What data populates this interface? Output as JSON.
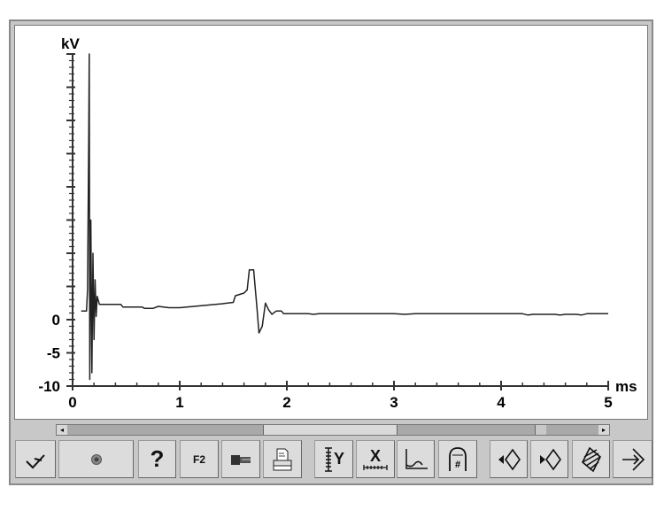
{
  "chart_data": {
    "type": "line",
    "title": "",
    "xlabel": "ms",
    "ylabel": "kV",
    "xlim": [
      0,
      5
    ],
    "ylim": [
      -10,
      40
    ],
    "x_ticks": [
      "0",
      "1",
      "2",
      "3",
      "4",
      "5"
    ],
    "y_ticks": [
      "0",
      "-5",
      "-10"
    ],
    "grid": false,
    "series": [
      {
        "color": "#222222",
        "points": [
          [
            0.08,
            1.3
          ],
          [
            0.13,
            1.3
          ],
          [
            0.14,
            4.5
          ],
          [
            0.15,
            27
          ],
          [
            0.155,
            40
          ],
          [
            0.16,
            -9
          ],
          [
            0.17,
            15
          ],
          [
            0.18,
            -8
          ],
          [
            0.19,
            10
          ],
          [
            0.2,
            -3
          ],
          [
            0.21,
            6
          ],
          [
            0.22,
            0.5
          ],
          [
            0.23,
            3.5
          ],
          [
            0.25,
            2.3
          ],
          [
            0.45,
            2.3
          ],
          [
            0.47,
            1.9
          ],
          [
            0.65,
            1.9
          ],
          [
            0.67,
            1.7
          ],
          [
            0.75,
            1.7
          ],
          [
            0.8,
            2.0
          ],
          [
            0.9,
            1.8
          ],
          [
            1.0,
            1.8
          ],
          [
            1.2,
            2.1
          ],
          [
            1.4,
            2.4
          ],
          [
            1.5,
            2.6
          ],
          [
            1.52,
            3.6
          ],
          [
            1.6,
            4.0
          ],
          [
            1.63,
            4.5
          ],
          [
            1.65,
            7.5
          ],
          [
            1.69,
            7.5
          ],
          [
            1.72,
            2
          ],
          [
            1.74,
            -2
          ],
          [
            1.77,
            -1
          ],
          [
            1.8,
            2.5
          ],
          [
            1.83,
            1.5
          ],
          [
            1.86,
            0.8
          ],
          [
            1.9,
            1.3
          ],
          [
            1.95,
            1.3
          ],
          [
            1.97,
            0.9
          ],
          [
            2.2,
            0.9
          ],
          [
            2.25,
            0.8
          ],
          [
            2.3,
            0.9
          ],
          [
            3.0,
            0.9
          ],
          [
            3.1,
            0.8
          ],
          [
            3.2,
            0.9
          ],
          [
            4.2,
            0.9
          ],
          [
            4.25,
            0.7
          ],
          [
            4.3,
            0.8
          ],
          [
            4.5,
            0.8
          ],
          [
            4.55,
            0.7
          ],
          [
            4.6,
            0.8
          ],
          [
            4.7,
            0.8
          ],
          [
            4.75,
            0.7
          ],
          [
            4.8,
            0.9
          ],
          [
            5.0,
            0.9
          ]
        ]
      }
    ]
  },
  "scrollbar": {
    "left_arrow": "◂",
    "right_arrow": "▸"
  },
  "toolbar": {
    "buttons": [
      {
        "icon": "checkmark-icon"
      },
      {
        "icon": "record-icon"
      },
      {
        "icon": "help-icon",
        "label": "?"
      },
      {
        "icon": "f2-icon",
        "label": "F2"
      },
      {
        "icon": "connector-icon"
      },
      {
        "icon": "print-icon"
      },
      {
        "icon": "y-scale-icon",
        "label": "Y"
      },
      {
        "icon": "x-scale-icon",
        "label": "X"
      },
      {
        "icon": "waveform-icon"
      },
      {
        "icon": "cylinder-icon",
        "label": "#"
      },
      {
        "icon": "cursor-left-icon"
      },
      {
        "icon": "cursor-right-icon"
      },
      {
        "icon": "hatch-icon"
      },
      {
        "icon": "exit-icon"
      }
    ]
  }
}
